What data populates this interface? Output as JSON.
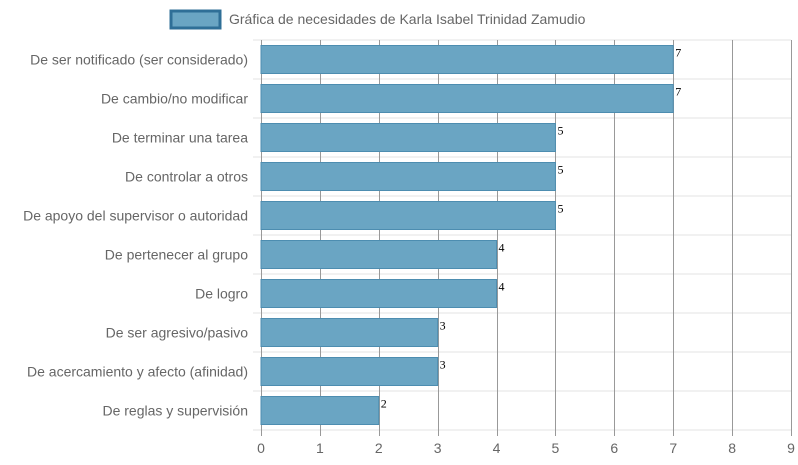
{
  "chart_data": {
    "type": "bar",
    "orientation": "horizontal",
    "categories": [
      "De ser notificado (ser considerado)",
      "De cambio/no modificar",
      "De terminar una tarea",
      "De controlar a otros",
      "De apoyo del supervisor o autoridad",
      "De pertenecer al grupo",
      "De logro",
      "De ser agresivo/pasivo",
      "De acercamiento y afecto (afinidad)",
      "De reglas y supervisión"
    ],
    "series": [
      {
        "name": "Gráfica de necesidades de Karla Isabel Trinidad Zamudio",
        "values": [
          7,
          7,
          5,
          5,
          5,
          4,
          4,
          3,
          3,
          2
        ]
      }
    ],
    "xlim": [
      0,
      9
    ],
    "xticks": [
      "0",
      "1",
      "2",
      "3",
      "4",
      "5",
      "6",
      "7",
      "8",
      "9"
    ],
    "grid": true,
    "legend_position": "top",
    "colors": {
      "bar_fill": "#6aa5c3",
      "bar_stroke": "#4d8db0",
      "legend_fill": "#6aa5c3",
      "legend_stroke": "#2f6f97",
      "grid": "#e3e3e3",
      "axis_grid": "#999999"
    }
  }
}
